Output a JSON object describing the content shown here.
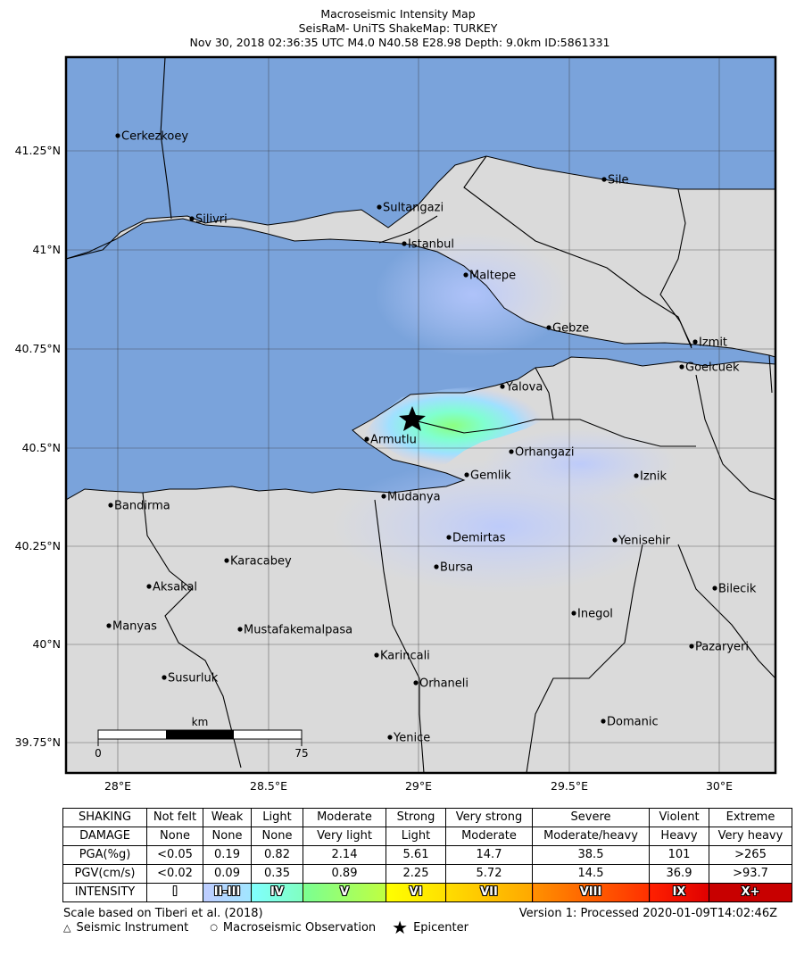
{
  "title": {
    "line1": "Macroseismic Intensity Map",
    "line2": "SeisRaM- UniTS ShakeMap: TURKEY",
    "line3": " Nov 30, 2018 02:36:35 UTC M4.0 N40.58 E28.98 Depth: 9.0km ID:5861331"
  },
  "map": {
    "lat_ticks": [
      "41.25°N",
      "41°N",
      "40.75°N",
      "40.5°N",
      "40.25°N",
      "40°N",
      "39.75°N"
    ],
    "lon_ticks": [
      "28°E",
      "28.5°E",
      "29°E",
      "29.5°E",
      "30°E"
    ],
    "cities": [
      {
        "name": "Cerkezkoey"
      },
      {
        "name": "Silivri"
      },
      {
        "name": "Sultangazi"
      },
      {
        "name": "Istanbul"
      },
      {
        "name": "Sile"
      },
      {
        "name": "Maltepe"
      },
      {
        "name": "Gebze"
      },
      {
        "name": "Izmit"
      },
      {
        "name": "Goelcuek"
      },
      {
        "name": "Yalova"
      },
      {
        "name": "Armutlu"
      },
      {
        "name": "Orhangazi"
      },
      {
        "name": "Gemlik"
      },
      {
        "name": "Iznik"
      },
      {
        "name": "Mudanya"
      },
      {
        "name": "Bandirma"
      },
      {
        "name": "Demirtas"
      },
      {
        "name": "Yenisehir"
      },
      {
        "name": "Karacabey"
      },
      {
        "name": "Bursa"
      },
      {
        "name": "Aksakal"
      },
      {
        "name": "Bilecik"
      },
      {
        "name": "Inegol"
      },
      {
        "name": "Manyas"
      },
      {
        "name": "Mustafakemalpasa"
      },
      {
        "name": "Pazaryeri"
      },
      {
        "name": "Karincali"
      },
      {
        "name": "Susurluk"
      },
      {
        "name": "Orhaneli"
      },
      {
        "name": "Domanic"
      },
      {
        "name": "Yenice"
      }
    ],
    "scale_bar": {
      "unit": "km",
      "start": "0",
      "end": "75"
    },
    "colors": {
      "sea": "#7aa3db",
      "land": "#e6e6e6",
      "frame": "#000000"
    }
  },
  "legend": {
    "rows": [
      {
        "label": "SHAKING",
        "cells": [
          "Not felt",
          "Weak",
          "Light",
          "Moderate",
          "Strong",
          "Very strong",
          "Severe",
          "Violent",
          "Extreme"
        ]
      },
      {
        "label": "DAMAGE",
        "cells": [
          "None",
          "None",
          "None",
          "Very light",
          "Light",
          "Moderate",
          "Moderate/heavy",
          "Heavy",
          "Very heavy"
        ]
      },
      {
        "label": "PGA(%g)",
        "cells": [
          "<0.05",
          "0.19",
          "0.82",
          "2.14",
          "5.61",
          "14.7",
          "38.5",
          "101",
          ">265"
        ]
      },
      {
        "label": "PGV(cm/s)",
        "cells": [
          "<0.02",
          "0.09",
          "0.35",
          "0.89",
          "2.25",
          "5.72",
          "14.5",
          "36.9",
          ">93.7"
        ]
      }
    ],
    "intensity_label": "INTENSITY",
    "intensity": [
      {
        "label": "I",
        "from": "#ffffff",
        "to": "#ffffff"
      },
      {
        "label": "II-III",
        "from": "#bfccff",
        "to": "#a0e6ff"
      },
      {
        "label": "IV",
        "from": "#80ffff",
        "to": "#80ffc0"
      },
      {
        "label": "V",
        "from": "#7aff93",
        "to": "#c0ff40"
      },
      {
        "label": "VI",
        "from": "#ffff00",
        "to": "#ffe000"
      },
      {
        "label": "VII",
        "from": "#ffdd00",
        "to": "#ffa800"
      },
      {
        "label": "VIII",
        "from": "#ff9100",
        "to": "#ff3000"
      },
      {
        "label": "IX",
        "from": "#ff2000",
        "to": "#e00000"
      },
      {
        "label": "X+",
        "from": "#c80000",
        "to": "#c80000"
      }
    ]
  },
  "footer": {
    "scale_note": "Scale based on Tiberi et al. (2018)",
    "version": "Version 1: Processed 2020-01-09T14:02:46Z",
    "key_instrument": "Seismic Instrument",
    "key_macro": "Macroseismic Observation",
    "key_epicenter": "Epicenter"
  }
}
